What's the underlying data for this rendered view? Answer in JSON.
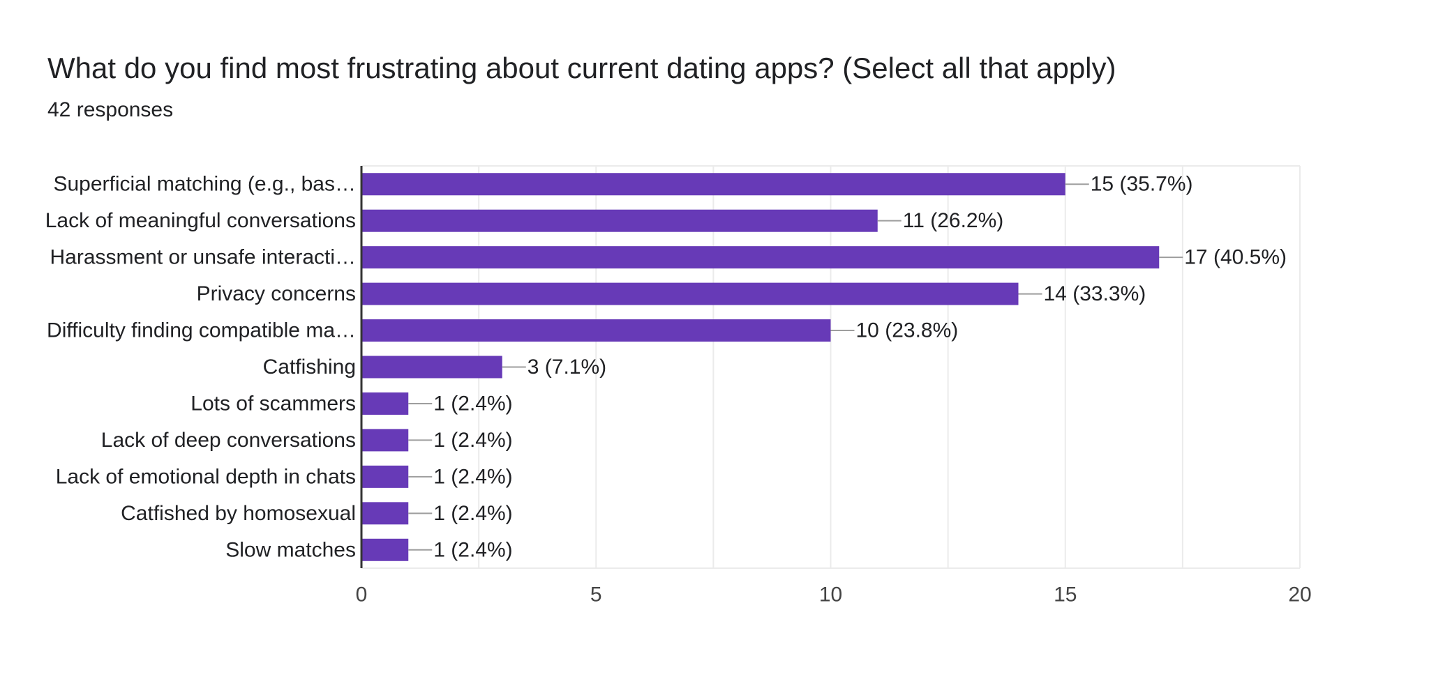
{
  "header": {
    "title": "What do you find most frustrating about current dating apps? (Select all that apply)",
    "responses": "42 responses"
  },
  "colors": {
    "bar": "#673ab7",
    "grid": "#ebebeb",
    "axis": "#333333",
    "leader": "#9e9e9e",
    "text": "#202124",
    "tick": "#444444"
  },
  "chart_data": {
    "type": "bar",
    "orientation": "horizontal",
    "categories": [
      "Superficial matching (e.g., bas…",
      "Lack of meaningful conversations",
      "Harassment or unsafe interacti…",
      "Privacy concerns",
      "Difficulty finding compatible ma…",
      "Catfishing",
      "Lots of scammers",
      "Lack of deep conversations",
      "Lack of emotional depth in chats",
      "Catfished by homosexual",
      "Slow matches"
    ],
    "values": [
      15,
      11,
      17,
      14,
      10,
      3,
      1,
      1,
      1,
      1,
      1
    ],
    "data_labels": [
      "15 (35.7%)",
      "11 (26.2%)",
      "17 (40.5%)",
      "14 (33.3%)",
      "10 (23.8%)",
      "3 (7.1%)",
      "1 (2.4%)",
      "1 (2.4%)",
      "1 (2.4%)",
      "1 (2.4%)",
      "1 (2.4%)"
    ],
    "xlim": [
      0,
      20
    ],
    "xticks": [
      0,
      5,
      10,
      15,
      20
    ],
    "grid": true
  }
}
